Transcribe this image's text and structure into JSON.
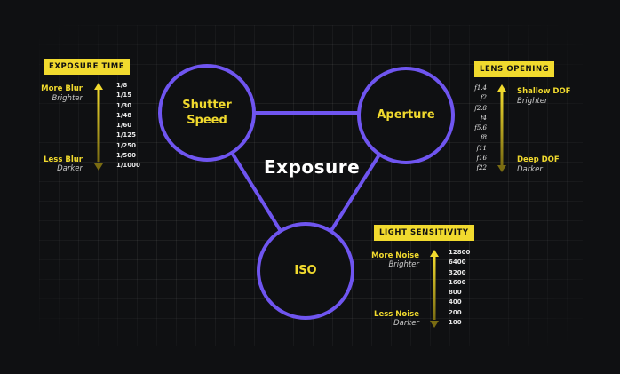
{
  "center": {
    "title": "Exposure"
  },
  "nodes": {
    "shutter": {
      "line1": "Shutter",
      "line2": "Speed"
    },
    "aperture": {
      "label": "Aperture"
    },
    "iso": {
      "label": "ISO"
    }
  },
  "exposure_time": {
    "tag": "EXPOSURE TIME",
    "top_main": "More Blur",
    "top_sub": "Brighter",
    "bottom_main": "Less Blur",
    "bottom_sub": "Darker",
    "values": [
      "1/8",
      "1/15",
      "1/30",
      "1/48",
      "1/60",
      "1/125",
      "1/250",
      "1/500",
      "1/1000"
    ]
  },
  "lens_opening": {
    "tag": "LENS OPENING",
    "top_main": "Shallow DOF",
    "top_sub": "Brighter",
    "bottom_main": "Deep DOF",
    "bottom_sub": "Darker",
    "values": [
      "f1.4",
      "f2",
      "f2.8",
      "f4",
      "f5.6",
      "f8",
      "f11",
      "f16",
      "f22"
    ]
  },
  "light_sensitivity": {
    "tag": "LIGHT SENSITIVITY",
    "top_main": "More Noise",
    "top_sub": "Brighter",
    "bottom_main": "Less Noise",
    "bottom_sub": "Darker",
    "values": [
      "12800",
      "6400",
      "3200",
      "1600",
      "800",
      "400",
      "200",
      "100"
    ]
  },
  "colors": {
    "accent_yellow": "#f1da2e",
    "circle_stroke": "#6f55f0",
    "background": "#0f1012"
  }
}
